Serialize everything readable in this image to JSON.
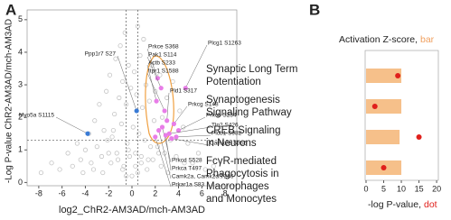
{
  "chart_data": [
    {
      "type": "scatter",
      "panel": "A",
      "xlabel": "log2_ChR2-AM3AD/mch-AM3AD",
      "ylabel": "-Log P-value ChR2-AM3AD/mch-AM3AD",
      "xlim": [
        -9,
        9
      ],
      "ylim": [
        -0.1,
        5.3
      ],
      "xticks": [
        -8,
        -6,
        -4,
        -2,
        0,
        2,
        4,
        6,
        8
      ],
      "yticks": [
        0,
        1,
        2,
        3,
        4,
        5
      ],
      "thresholds": {
        "x": [
          -0.5,
          0.5
        ],
        "y": 1.3
      },
      "points": {
        "color": "#c4c4c4",
        "x": [
          -7.8,
          -6.9,
          -6.2,
          -5.5,
          -5.1,
          -4.7,
          -4.4,
          -4.0,
          -3.7,
          -3.5,
          -3.2,
          -3.0,
          -2.8,
          -2.6,
          -2.4,
          -2.2,
          -2.0,
          -1.9,
          -1.7,
          -1.5,
          -1.4,
          -1.2,
          -1.1,
          -1.0,
          -0.9,
          -0.8,
          -0.7,
          -0.6,
          -0.5,
          -0.4,
          -0.3,
          -0.2,
          -0.1,
          0.0,
          0.1,
          0.2,
          0.3,
          0.4,
          0.5,
          0.6,
          0.7,
          0.8,
          0.9,
          1.0,
          1.1,
          1.2,
          1.4,
          1.5,
          1.7,
          1.9,
          2.0,
          2.2,
          2.4,
          2.6,
          2.8,
          3.0,
          3.3,
          3.5,
          3.8,
          4.1,
          4.4,
          4.8,
          5.2,
          5.7,
          6.3,
          7.0,
          7.6,
          -3.3,
          -2.5,
          -1.8,
          -1.3,
          -0.8,
          -0.3,
          0.3,
          0.8,
          1.3,
          1.8,
          2.5,
          3.1,
          -1.6,
          1.6,
          -0.5,
          0.5,
          -2.1,
          2.3,
          -4.2,
          4.5
        ],
        "y": [
          0.3,
          0.6,
          0.4,
          0.9,
          0.5,
          1.2,
          0.7,
          1.0,
          1.5,
          0.6,
          1.9,
          1.1,
          2.4,
          0.8,
          1.6,
          2.8,
          0.9,
          3.3,
          1.4,
          2.1,
          3.8,
          0.7,
          2.6,
          4.2,
          1.8,
          3.1,
          0.5,
          4.6,
          2.4,
          1.2,
          3.6,
          0.8,
          2.9,
          0.2,
          1.7,
          3.4,
          0.9,
          2.7,
          4.8,
          1.5,
          3.9,
          0.6,
          2.3,
          4.4,
          1.3,
          3.0,
          0.7,
          2.5,
          3.6,
          1.9,
          2.8,
          1.1,
          3.3,
          2.0,
          0.9,
          2.6,
          1.3,
          3.1,
          0.8,
          2.2,
          1.7,
          1.2,
          0.6,
          0.9,
          0.4,
          0.5,
          0.2,
          0.4,
          0.3,
          0.6,
          0.9,
          0.4,
          1.0,
          0.5,
          0.8,
          0.4,
          0.7,
          0.5,
          0.3,
          1.6,
          1.1,
          0.2,
          0.3,
          1.3,
          0.9,
          0.3,
          0.6
        ]
      },
      "highlighted": [
        {
          "label": "Ppp1r7 S27",
          "x": 0.4,
          "y": 2.2,
          "color": "#3a7bd5"
        },
        {
          "label": "Myo5a S1115",
          "x": -3.8,
          "y": 1.5,
          "color": "#3a7bd5"
        },
        {
          "label": "Prkce S368",
          "x": 2.2,
          "y": 3.2,
          "color": "#e87de8"
        },
        {
          "label": "Pak1 S114",
          "x": 2.5,
          "y": 2.9,
          "color": "#e87de8"
        },
        {
          "label": "Actb S233",
          "x": 2.1,
          "y": 2.5,
          "color": "#e87de8"
        },
        {
          "label": "Itpr1 S1588",
          "x": 2.8,
          "y": 2.2,
          "color": "#e87de8"
        },
        {
          "label": "Plcg1 S1263",
          "x": 4.6,
          "y": 2.9,
          "color": "#e87de8"
        },
        {
          "label": "Pld1 S317",
          "x": 3.0,
          "y": 1.9,
          "color": "#e87de8"
        },
        {
          "label": "Prkcg S148",
          "x": 3.6,
          "y": 1.8,
          "color": "#e87de8"
        },
        {
          "label": "Prkcb S234",
          "x": 4.0,
          "y": 1.6,
          "color": "#e87de8"
        },
        {
          "label": "Tln2 S426",
          "x": 3.2,
          "y": 1.5,
          "color": "#e87de8"
        },
        {
          "label": "Plcb1 S982",
          "x": 3.8,
          "y": 1.4,
          "color": "#e87de8"
        },
        {
          "label": "Camk2b S355",
          "x": 3.4,
          "y": 1.35,
          "color": "#e87de8"
        },
        {
          "label": "Prkcd S528",
          "x": 2.6,
          "y": 1.7,
          "color": "#e87de8"
        },
        {
          "label": "Prkca T497",
          "x": 2.9,
          "y": 1.45,
          "color": "#e87de8"
        },
        {
          "label": "Camk2a, Camk2d T286",
          "x": 2.3,
          "y": 1.6,
          "color": "#e87de8"
        },
        {
          "label": "Prkar1a S83",
          "x": 2.0,
          "y": 1.4,
          "color": "#e87de8"
        }
      ]
    },
    {
      "type": "bar_dot",
      "panel": "B",
      "top_label": "Activation Z-score,",
      "top_key": "bar",
      "xlabel": "-log P-value,",
      "xlabel_key": "dot",
      "categories": [
        [
          "Synaptic Long Term",
          "Potentiation"
        ],
        [
          "Synaptogenesis",
          "Signaling Pathway"
        ],
        [
          "CREB Signaling",
          "in Neurons"
        ],
        [
          "FcγR-mediated",
          "Phagocytosis in",
          "Macrophages",
          "and Monocytes"
        ]
      ],
      "bars": {
        "color": "#f6c08a",
        "values": [
          10,
          10,
          9.5,
          10
        ]
      },
      "dots": {
        "color": "#e0201c",
        "values": [
          9,
          2.5,
          15,
          5
        ]
      },
      "xlim": [
        0,
        21
      ],
      "xticks": [
        0,
        5,
        10,
        15,
        20
      ]
    }
  ]
}
